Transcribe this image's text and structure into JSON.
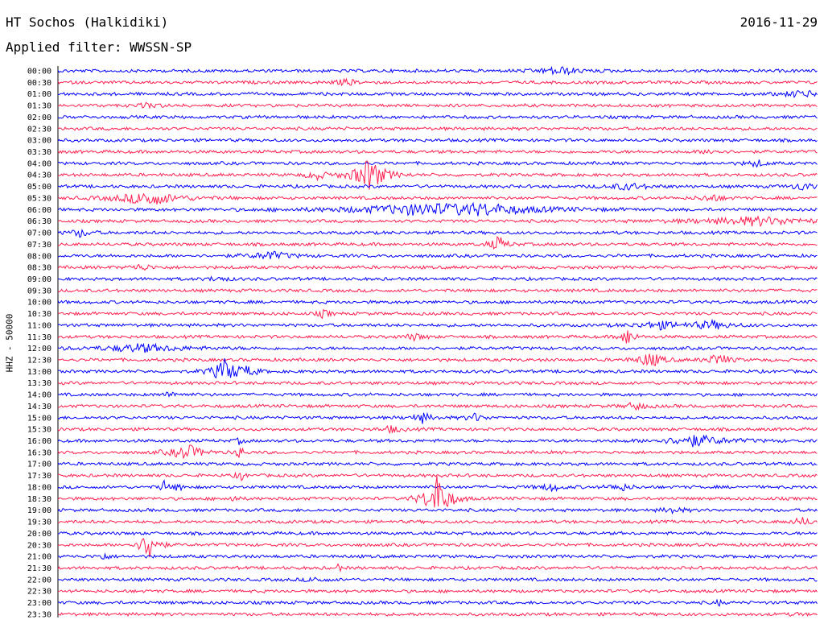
{
  "header": {
    "station": "HT Sochos (Halkidiki)",
    "date": "2016-11-29",
    "filter": "Applied filter: WWSSN-SP"
  },
  "chart_data": {
    "type": "helicorder",
    "title": "HT Sochos (Halkidiki)",
    "ylabel": "HHZ - 50000",
    "colors": [
      "#0000ff",
      "#ff1f4f"
    ],
    "rows": [
      "00:00",
      "00:30",
      "01:00",
      "01:30",
      "02:00",
      "02:30",
      "03:00",
      "03:30",
      "04:00",
      "04:30",
      "05:00",
      "05:30",
      "06:00",
      "06:30",
      "07:00",
      "07:30",
      "08:00",
      "08:30",
      "09:00",
      "09:30",
      "10:00",
      "10:30",
      "11:00",
      "11:30",
      "12:00",
      "12:30",
      "13:00",
      "13:30",
      "14:00",
      "14:30",
      "15:00",
      "15:30",
      "16:00",
      "16:30",
      "17:00",
      "17:30",
      "18:00",
      "18:30",
      "19:00",
      "19:30",
      "20:00",
      "20:30",
      "21:00",
      "21:30",
      "22:00",
      "22:30",
      "23:00",
      "23:30"
    ],
    "events": [
      {
        "row": 0,
        "pos": 0.66,
        "amp": 5,
        "width": 0.02
      },
      {
        "row": 1,
        "pos": 0.38,
        "amp": 4,
        "width": 0.01
      },
      {
        "row": 2,
        "pos": 0.98,
        "amp": 4,
        "width": 0.02
      },
      {
        "row": 3,
        "pos": 0.12,
        "amp": 3,
        "width": 0.01
      },
      {
        "row": 7,
        "pos": 0.86,
        "amp": 3,
        "width": 0.01
      },
      {
        "row": 8,
        "pos": 0.92,
        "amp": 4,
        "width": 0.01
      },
      {
        "row": 9,
        "pos": 0.34,
        "amp": 7,
        "width": 0.008
      },
      {
        "row": 9,
        "pos": 0.41,
        "amp": 22,
        "width": 0.015
      },
      {
        "row": 10,
        "pos": 0.75,
        "amp": 4,
        "width": 0.02
      },
      {
        "row": 10,
        "pos": 0.98,
        "amp": 5,
        "width": 0.01
      },
      {
        "row": 11,
        "pos": 0.12,
        "amp": 9,
        "width": 0.03
      },
      {
        "row": 11,
        "pos": 0.86,
        "amp": 5,
        "width": 0.01
      },
      {
        "row": 12,
        "pos": 0.48,
        "amp": 6,
        "width": 0.08
      },
      {
        "row": 12,
        "pos": 0.56,
        "amp": 5,
        "width": 0.05
      },
      {
        "row": 13,
        "pos": 0.92,
        "amp": 5,
        "width": 0.06
      },
      {
        "row": 14,
        "pos": 0.03,
        "amp": 5,
        "width": 0.01
      },
      {
        "row": 15,
        "pos": 0.58,
        "amp": 10,
        "width": 0.008
      },
      {
        "row": 16,
        "pos": 0.28,
        "amp": 5,
        "width": 0.02
      },
      {
        "row": 17,
        "pos": 0.11,
        "amp": 4,
        "width": 0.01
      },
      {
        "row": 18,
        "pos": 0.21,
        "amp": 3,
        "width": 0.01
      },
      {
        "row": 21,
        "pos": 0.35,
        "amp": 6,
        "width": 0.005
      },
      {
        "row": 22,
        "pos": 0.79,
        "amp": 5,
        "width": 0.02
      },
      {
        "row": 22,
        "pos": 0.86,
        "amp": 5,
        "width": 0.02
      },
      {
        "row": 23,
        "pos": 0.47,
        "amp": 4,
        "width": 0.01
      },
      {
        "row": 23,
        "pos": 0.75,
        "amp": 12,
        "width": 0.006
      },
      {
        "row": 24,
        "pos": 0.11,
        "amp": 5,
        "width": 0.04
      },
      {
        "row": 25,
        "pos": 0.78,
        "amp": 10,
        "width": 0.012
      },
      {
        "row": 25,
        "pos": 0.87,
        "amp": 9,
        "width": 0.01
      },
      {
        "row": 26,
        "pos": 0.22,
        "amp": 16,
        "width": 0.012
      },
      {
        "row": 26,
        "pos": 0.25,
        "amp": 5,
        "width": 0.01
      },
      {
        "row": 28,
        "pos": 0.15,
        "amp": 3,
        "width": 0.01
      },
      {
        "row": 29,
        "pos": 0.76,
        "amp": 5,
        "width": 0.01
      },
      {
        "row": 30,
        "pos": 0.48,
        "amp": 6,
        "width": 0.01
      },
      {
        "row": 30,
        "pos": 0.55,
        "amp": 5,
        "width": 0.008
      },
      {
        "row": 31,
        "pos": 0.44,
        "amp": 4,
        "width": 0.01
      },
      {
        "row": 32,
        "pos": 0.84,
        "amp": 7,
        "width": 0.03
      },
      {
        "row": 32,
        "pos": 0.24,
        "amp": 6,
        "width": 0.003
      },
      {
        "row": 33,
        "pos": 0.17,
        "amp": 10,
        "width": 0.015
      },
      {
        "row": 33,
        "pos": 0.24,
        "amp": 12,
        "width": 0.003
      },
      {
        "row": 35,
        "pos": 0.24,
        "amp": 10,
        "width": 0.003
      },
      {
        "row": 36,
        "pos": 0.14,
        "amp": 10,
        "width": 0.003
      },
      {
        "row": 36,
        "pos": 0.16,
        "amp": 11,
        "width": 0.003
      },
      {
        "row": 36,
        "pos": 0.65,
        "amp": 5,
        "width": 0.01
      },
      {
        "row": 36,
        "pos": 0.74,
        "amp": 5,
        "width": 0.01
      },
      {
        "row": 37,
        "pos": 0.5,
        "amp": 30,
        "width": 0.012
      },
      {
        "row": 37,
        "pos": 0.23,
        "amp": 4,
        "width": 0.005
      },
      {
        "row": 38,
        "pos": 0.81,
        "amp": 4,
        "width": 0.01
      },
      {
        "row": 39,
        "pos": 0.98,
        "amp": 5,
        "width": 0.01
      },
      {
        "row": 41,
        "pos": 0.12,
        "amp": 22,
        "width": 0.008
      },
      {
        "row": 42,
        "pos": 0.06,
        "amp": 5,
        "width": 0.005
      },
      {
        "row": 43,
        "pos": 0.37,
        "amp": 6,
        "width": 0.002
      },
      {
        "row": 44,
        "pos": 0.34,
        "amp": 3,
        "width": 0.01
      },
      {
        "row": 46,
        "pos": 0.87,
        "amp": 4,
        "width": 0.003
      },
      {
        "row": 47,
        "pos": 0.97,
        "amp": 3,
        "width": 0.003
      }
    ]
  }
}
